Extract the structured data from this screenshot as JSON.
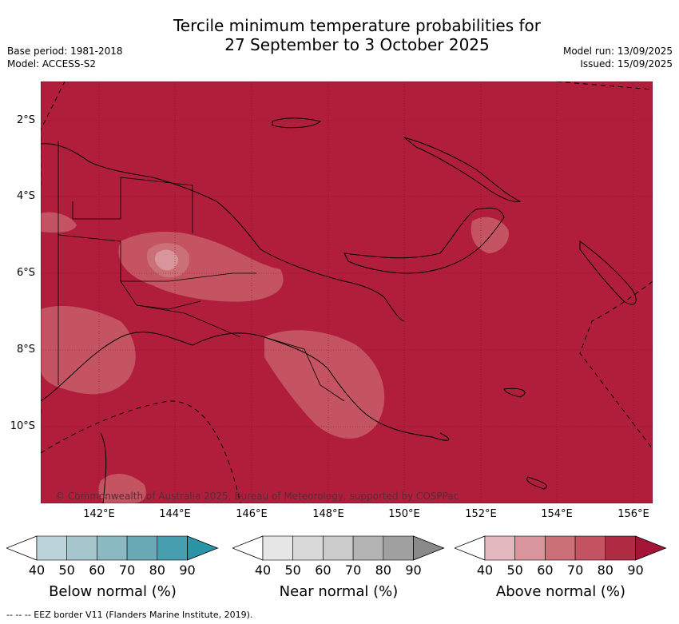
{
  "header": {
    "title_line1": "Tercile minimum temperature probabilities for",
    "title_line2": "27 September to 3 October 2025",
    "base_period": "Base period: 1981-2018",
    "model": "Model: ACCESS-S2",
    "model_run": "Model run: 13/09/2025",
    "issued": "Issued: 15/09/2025"
  },
  "map": {
    "lat_labels": [
      "2°S",
      "4°S",
      "6°S",
      "8°S",
      "10°S"
    ],
    "lon_labels": [
      "142°E",
      "144°E",
      "146°E",
      "148°E",
      "150°E",
      "152°E",
      "154°E",
      "156°E"
    ],
    "copyright": "© Commonwealth of Australia 2025, Bureau of Meteorology, supported by COSPPac",
    "background_category": "Above normal 80-90%",
    "colors": {
      "above_80": "#b01e3c",
      "above_70": "#c45462",
      "above_60": "#cc7078",
      "above_50": "#d9959c"
    }
  },
  "colorbars": [
    {
      "name": "below",
      "label": "Below normal (%)",
      "ticks": [
        "40",
        "50",
        "60",
        "70",
        "80",
        "90"
      ],
      "colors": [
        "#bdd3da",
        "#a5c6cd",
        "#8bb9c2",
        "#6aa9b6",
        "#479eae",
        "#2b95a8"
      ]
    },
    {
      "name": "near",
      "label": "Near normal (%)",
      "ticks": [
        "40",
        "50",
        "60",
        "70",
        "80",
        "90"
      ],
      "colors": [
        "#e6e6e6",
        "#d9d9d9",
        "#cbcbcb",
        "#b4b4b4",
        "#a0a0a0",
        "#8a8a8a"
      ]
    },
    {
      "name": "above",
      "label": "Above normal (%)",
      "ticks": [
        "40",
        "50",
        "60",
        "70",
        "80",
        "90"
      ],
      "colors": [
        "#e3b8be",
        "#d9959c",
        "#cc7078",
        "#c45462",
        "#b02b44",
        "#a31436"
      ]
    }
  ],
  "footer": "--  --  -- EEZ border V11 (Flanders Marine Institute, 2019)."
}
